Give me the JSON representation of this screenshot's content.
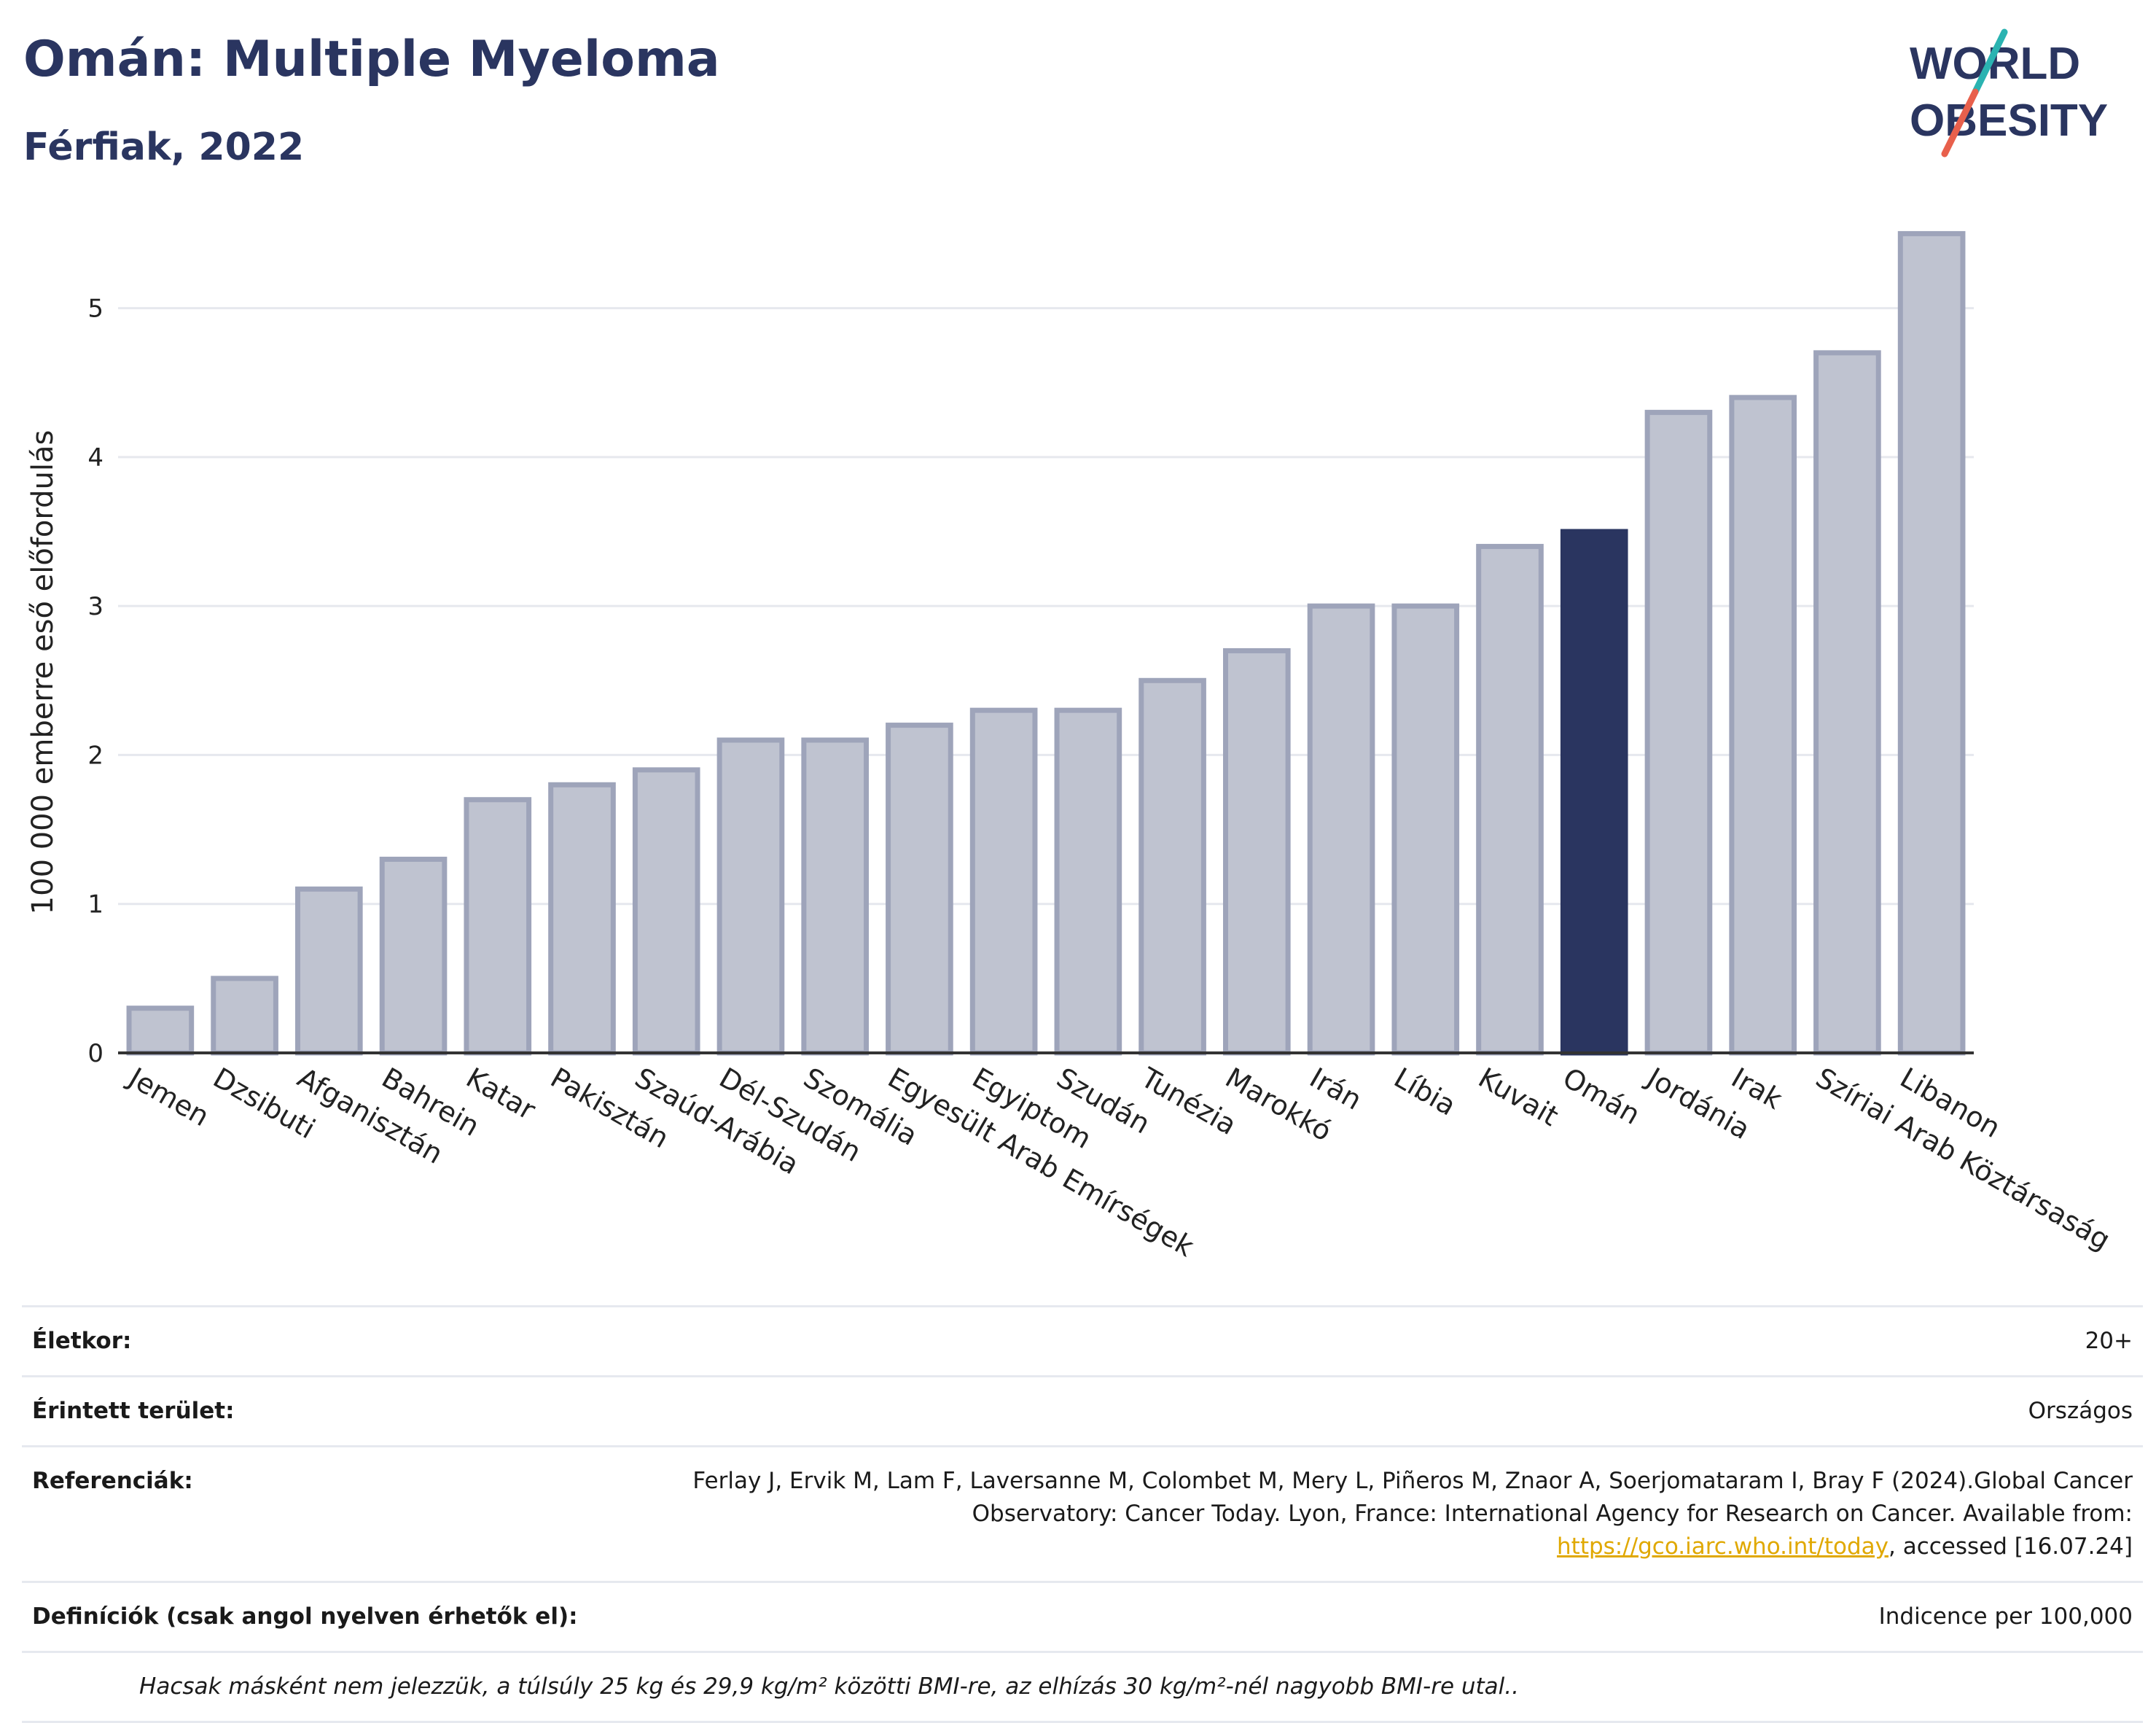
{
  "header": {
    "title": "Omán: Multiple Myeloma",
    "subtitle": "Férfiak, 2022"
  },
  "logo": {
    "line1": "WORLD",
    "line2": "OBESITY",
    "accent_colors": [
      "#2ab3b1",
      "#e8604c"
    ]
  },
  "chart_data": {
    "type": "bar",
    "ylabel": "100 000 emberre eső előfordulás",
    "xlabel": "",
    "ylim": [
      0,
      5.6
    ],
    "yticks": [
      0,
      1,
      2,
      3,
      4,
      5
    ],
    "categories": [
      "Jemen",
      "Dzsibuti",
      "Afganisztán",
      "Bahrein",
      "Katar",
      "Pakisztán",
      "Szaúd-Arábia",
      "Dél-Szudán",
      "Szomália",
      "Egyesült Arab Emírségek",
      "Egyiptom",
      "Szudán",
      "Tunézia",
      "Marokkó",
      "Irán",
      "Líbia",
      "Kuvait",
      "Omán",
      "Jordánia",
      "Irak",
      "Szíriai Arab Köztársaság",
      "Libanon"
    ],
    "values": [
      0.3,
      0.5,
      1.1,
      1.3,
      1.7,
      1.8,
      1.9,
      2.1,
      2.1,
      2.2,
      2.3,
      2.3,
      2.5,
      2.7,
      3.0,
      3.0,
      3.4,
      3.5,
      4.3,
      4.4,
      4.7,
      5.5
    ],
    "highlight": "Omán",
    "colors": {
      "bar": "#bfc3d0",
      "bar_border": "#9ea4ba",
      "highlight": "#2a3560",
      "grid": "#e6e8ee",
      "axis": "#333333"
    },
    "grid": true
  },
  "meta": {
    "rows": [
      {
        "label": "Életkor:",
        "value": "20+"
      },
      {
        "label": "Érintett terület:",
        "value": "Országos"
      },
      {
        "label": "Referenciák:",
        "value_pre": "Ferlay J, Ervik M, Lam F, Laversanne M, Colombet M, Mery L, Piñeros M, Znaor A, Soerjomataram I, Bray F (2024).Global Cancer Observatory: Cancer Today. Lyon, France: International Agency for Research on Cancer. Available from: ",
        "link": "https://gco.iarc.who.int/today",
        "value_post": ", accessed [16.07.24]"
      },
      {
        "label": "Definíciók (csak angol nyelven érhetők el):",
        "value": "Indicence per 100,000"
      }
    ],
    "footnote": "Hacsak másként nem jelezzük, a túlsúly 25 kg és 29,9 kg/m² közötti BMI-re, az elhízás 30 kg/m²-nél nagyobb BMI-re utal.."
  }
}
